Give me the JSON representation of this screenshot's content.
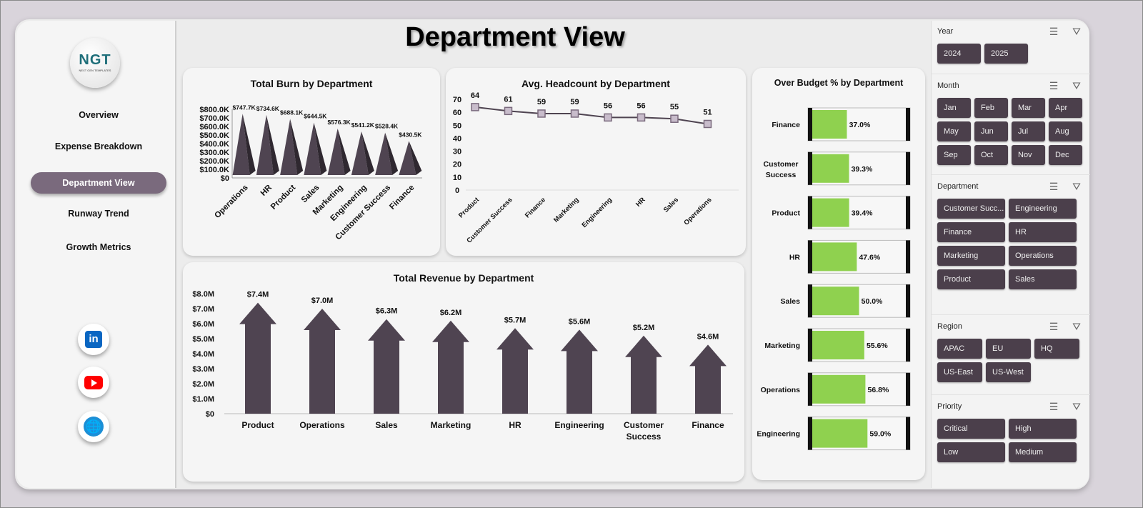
{
  "page_title": "Department View",
  "logo": {
    "text": "NGT",
    "subtitle": "NEXT GEN TEMPLATES"
  },
  "nav": [
    {
      "label": "Overview",
      "active": false
    },
    {
      "label": "Expense Breakdown",
      "active": false
    },
    {
      "label": "Department View",
      "active": true
    },
    {
      "label": "Runway Trend",
      "active": false
    },
    {
      "label": "Growth Metrics",
      "active": false
    }
  ],
  "social": [
    {
      "icon": "linkedin-icon",
      "label": "in",
      "color": "#0a66c2"
    },
    {
      "icon": "youtube-icon",
      "color": "#ff0000"
    },
    {
      "icon": "globe-icon",
      "color": "#1c8fd6"
    }
  ],
  "colors": {
    "bar": "#4f4451",
    "fill": "#8fd14f",
    "slicer": "#4b3f4b",
    "active_nav": "#7a6a7d"
  },
  "slicers": [
    {
      "title": "Year",
      "cols": 2,
      "items": [
        "2024",
        "2025"
      ]
    },
    {
      "title": "Month",
      "cols": 4,
      "items": [
        "Jan",
        "Feb",
        "Mar",
        "Apr",
        "May",
        "Jun",
        "Jul",
        "Aug",
        "Sep",
        "Oct",
        "Nov",
        "Dec"
      ]
    },
    {
      "title": "Department",
      "cols": 2,
      "items": [
        "Customer Succ...",
        "Engineering",
        "Finance",
        "HR",
        "Marketing",
        "Operations",
        "Product",
        "Sales"
      ]
    },
    {
      "title": "Region",
      "cols": 3,
      "items": [
        "APAC",
        "EU",
        "HQ",
        "US-East",
        "US-West"
      ]
    },
    {
      "title": "Priority",
      "cols": 2,
      "items": [
        "Critical",
        "High",
        "Low",
        "Medium"
      ]
    }
  ],
  "chart_data": [
    {
      "type": "bar",
      "title": "Total Burn by Department",
      "categories": [
        "Operations",
        "HR",
        "Product",
        "Sales",
        "Marketing",
        "Engineering",
        "Customer Success",
        "Finance"
      ],
      "values": [
        747.7,
        734.6,
        688.1,
        644.5,
        576.3,
        541.2,
        528.4,
        430.5
      ],
      "data_labels": [
        "$747.7K",
        "$734.6K",
        "$688.1K",
        "$644.5K",
        "$576.3K",
        "$541.2K",
        "$528.4K",
        "$430.5K"
      ],
      "yticks": [
        "$0",
        "$100.0K",
        "$200.0K",
        "$300.0K",
        "$400.0K",
        "$500.0K",
        "$600.0K",
        "$700.0K",
        "$800.0K"
      ],
      "ylim": [
        0,
        800
      ],
      "unit": "$K",
      "shape": "pyramid"
    },
    {
      "type": "line",
      "title": "Avg. Headcount by Department",
      "categories": [
        "Product",
        "Customer Success",
        "Finance",
        "Marketing",
        "Engineering",
        "HR",
        "Sales",
        "Operations"
      ],
      "values": [
        64,
        61,
        59,
        59,
        56,
        56,
        55,
        51
      ],
      "yticks": [
        "0",
        "10",
        "20",
        "30",
        "40",
        "50",
        "60",
        "70"
      ],
      "ylim": [
        0,
        70
      ]
    },
    {
      "type": "bar",
      "title": "Total Revenue  by Department",
      "categories": [
        "Product",
        "Operations",
        "Sales",
        "Marketing",
        "HR",
        "Engineering",
        "Customer Success",
        "Finance"
      ],
      "values": [
        7.4,
        7.0,
        6.3,
        6.2,
        5.7,
        5.6,
        5.2,
        4.6
      ],
      "data_labels": [
        "$7.4M",
        "$7.0M",
        "$6.3M",
        "$6.2M",
        "$5.7M",
        "$5.6M",
        "$5.2M",
        "$4.6M"
      ],
      "yticks": [
        "$0",
        "$1.0M",
        "$2.0M",
        "$3.0M",
        "$4.0M",
        "$5.0M",
        "$6.0M",
        "$7.0M",
        "$8.0M"
      ],
      "ylim": [
        0,
        8
      ],
      "unit": "$M",
      "shape": "arrow"
    },
    {
      "type": "bar",
      "orientation": "horizontal",
      "title": "Over Budget % by Department",
      "categories": [
        "Finance",
        "Customer Success",
        "Product",
        "HR",
        "Sales",
        "Marketing",
        "Operations",
        "Engineering"
      ],
      "values": [
        37.0,
        39.3,
        39.4,
        47.6,
        50.0,
        55.6,
        56.8,
        59.0
      ],
      "data_labels": [
        "37.0%",
        "39.3%",
        "39.4%",
        "47.6%",
        "50.0%",
        "55.6%",
        "56.8%",
        "59.0%"
      ],
      "xlim": [
        0,
        100
      ]
    }
  ]
}
